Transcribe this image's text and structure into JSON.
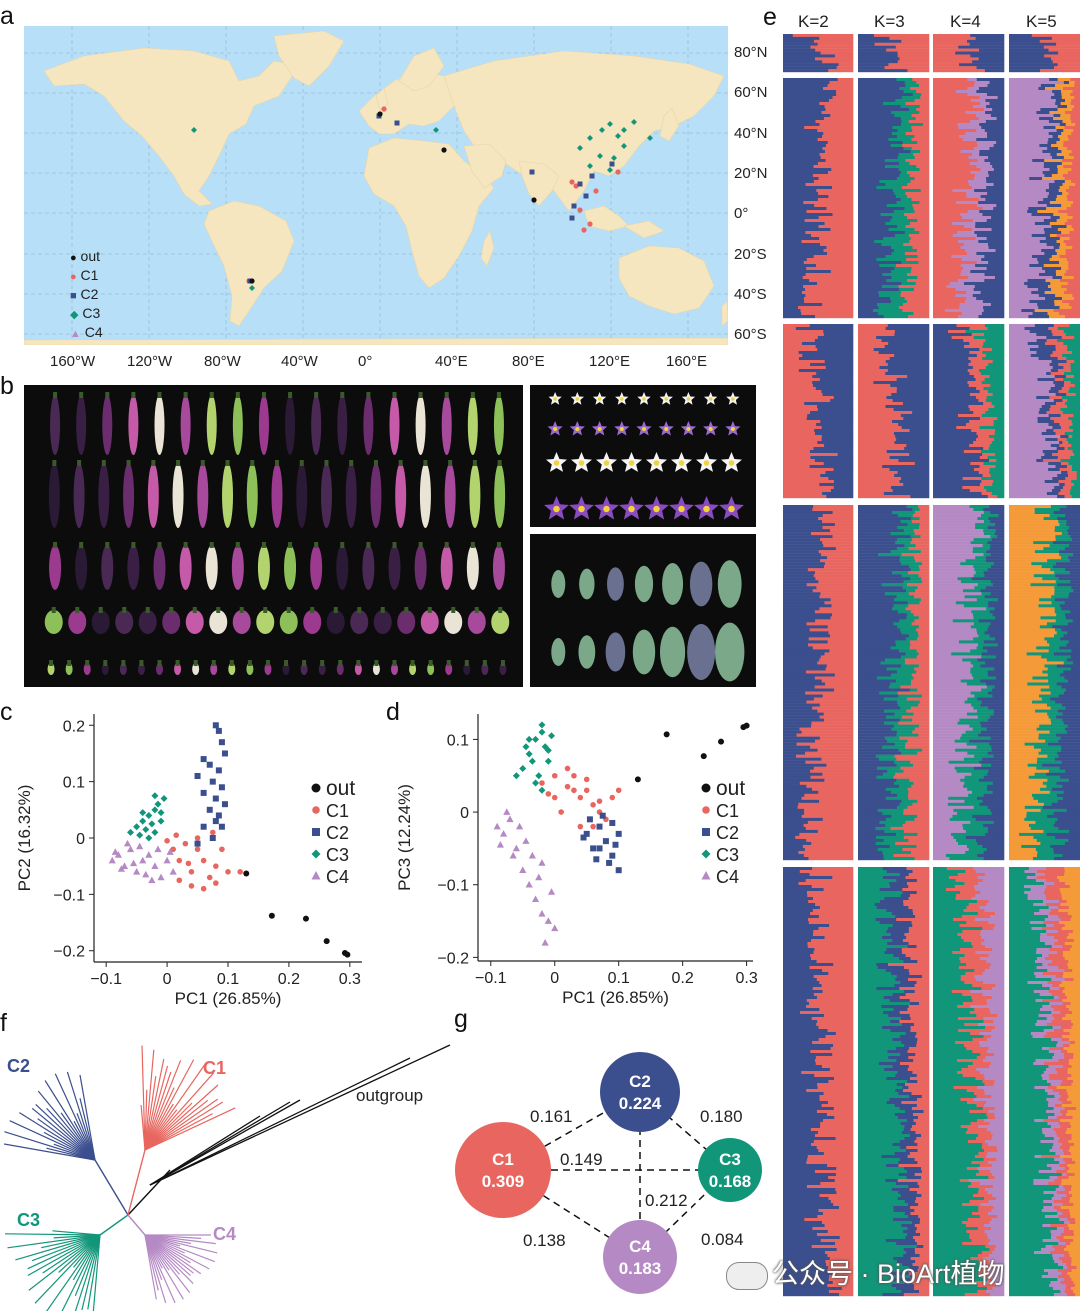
{
  "panel_labels": {
    "a": "a",
    "b": "b",
    "c": "c",
    "d": "d",
    "e": "e",
    "f": "f",
    "g": "g"
  },
  "colors": {
    "out": "#111111",
    "C1": "#e8665f",
    "C2": "#3b4f8e",
    "C3": "#12967a",
    "C4": "#b58ac4",
    "ocean": "#b7dff8",
    "land": "#f5e6c0",
    "K5_orange": "#f59a38"
  },
  "map": {
    "lat_labels": [
      "80°N",
      "60°N",
      "40°N",
      "20°N",
      "0°",
      "20°S",
      "40°S",
      "60°S"
    ],
    "lon_labels": [
      "160°W",
      "120°W",
      "80°W",
      "40°W",
      "0°",
      "40°E",
      "80°E",
      "120°E",
      "160°E"
    ],
    "legend": [
      {
        "label": "out",
        "group": "out",
        "symbol": "●"
      },
      {
        "label": "C1",
        "group": "C1",
        "symbol": "●"
      },
      {
        "label": "C2",
        "group": "C2",
        "symbol": "■"
      },
      {
        "label": "C3",
        "group": "C3",
        "symbol": "◆"
      },
      {
        "label": "C4",
        "group": "C4",
        "symbol": "▲"
      }
    ]
  },
  "chart_data": [
    {
      "panel": "c",
      "type": "scatter",
      "xlabel": "PC1 (26.85%)",
      "ylabel": "PC2 (16.32%)",
      "xlim": [
        -0.12,
        0.32
      ],
      "ylim": [
        -0.22,
        0.22
      ],
      "xticks": [
        {
          "v": -0.1,
          "t": "−0.1"
        },
        {
          "v": 0,
          "t": "0"
        },
        {
          "v": 0.1,
          "t": "0.1"
        },
        {
          "v": 0.2,
          "t": "0.2"
        },
        {
          "v": 0.3,
          "t": "0.3"
        }
      ],
      "yticks": [
        {
          "v": 0.2,
          "t": "0.2"
        },
        {
          "v": 0.1,
          "t": "0.1"
        },
        {
          "v": 0,
          "t": "0"
        },
        {
          "v": -0.1,
          "t": "−0.1"
        },
        {
          "v": -0.2,
          "t": "−0.2"
        }
      ],
      "legend": [
        "out",
        "C1",
        "C2",
        "C3",
        "C4"
      ],
      "series": [
        {
          "name": "out",
          "marker": "circle",
          "points": [
            [
              0.13,
              -0.063
            ],
            [
              0.172,
              -0.138
            ],
            [
              0.228,
              -0.143
            ],
            [
              0.262,
              -0.183
            ],
            [
              0.292,
              -0.204
            ],
            [
              0.296,
              -0.207
            ]
          ]
        },
        {
          "name": "C1",
          "marker": "circle",
          "points": [
            [
              0.0,
              -0.005
            ],
            [
              0.01,
              -0.02
            ],
            [
              0.02,
              -0.04
            ],
            [
              0.03,
              -0.01
            ],
            [
              0.04,
              -0.06
            ],
            [
              0.05,
              -0.02
            ],
            [
              0.06,
              -0.04
            ],
            [
              0.07,
              -0.07
            ],
            [
              0.08,
              -0.05
            ],
            [
              0.09,
              -0.02
            ],
            [
              0.1,
              -0.06
            ],
            [
              0.12,
              -0.06
            ],
            [
              0.02,
              -0.075
            ],
            [
              0.04,
              -0.085
            ],
            [
              0.06,
              -0.09
            ],
            [
              0.08,
              -0.08
            ],
            [
              0.015,
              0.005
            ],
            [
              0.05,
              0.0
            ],
            [
              0.075,
              0.01
            ],
            [
              0.035,
              -0.045
            ]
          ]
        },
        {
          "name": "C2",
          "marker": "square",
          "points": [
            [
              0.08,
              0.2
            ],
            [
              0.085,
              0.19
            ],
            [
              0.09,
              0.17
            ],
            [
              0.095,
              0.15
            ],
            [
              0.06,
              0.14
            ],
            [
              0.07,
              0.13
            ],
            [
              0.085,
              0.12
            ],
            [
              0.05,
              0.11
            ],
            [
              0.075,
              0.1
            ],
            [
              0.09,
              0.09
            ],
            [
              0.06,
              0.08
            ],
            [
              0.08,
              0.07
            ],
            [
              0.095,
              0.06
            ],
            [
              0.07,
              0.05
            ],
            [
              0.085,
              0.04
            ],
            [
              0.09,
              0.02
            ],
            [
              0.06,
              0.02
            ],
            [
              0.075,
              0.0
            ],
            [
              0.05,
              -0.01
            ],
            [
              0.08,
              0.03
            ]
          ]
        },
        {
          "name": "C3",
          "marker": "diamond",
          "points": [
            [
              -0.05,
              0.02
            ],
            [
              -0.04,
              0.03
            ],
            [
              -0.03,
              0.04
            ],
            [
              -0.02,
              0.05
            ],
            [
              -0.045,
              0.005
            ],
            [
              -0.035,
              0.015
            ],
            [
              -0.025,
              0.025
            ],
            [
              -0.015,
              0.06
            ],
            [
              -0.01,
              0.045
            ],
            [
              -0.005,
              0.07
            ],
            [
              -0.03,
              0.0
            ],
            [
              -0.02,
              0.01
            ],
            [
              -0.04,
              0.045
            ],
            [
              -0.02,
              0.075
            ],
            [
              -0.06,
              0.01
            ],
            [
              -0.01,
              0.03
            ]
          ]
        },
        {
          "name": "C4",
          "marker": "triangle",
          "points": [
            [
              -0.09,
              -0.04
            ],
            [
              -0.08,
              -0.03
            ],
            [
              -0.07,
              -0.05
            ],
            [
              -0.06,
              -0.02
            ],
            [
              -0.05,
              -0.06
            ],
            [
              -0.04,
              -0.04
            ],
            [
              -0.03,
              -0.03
            ],
            [
              -0.02,
              -0.05
            ],
            [
              -0.01,
              -0.07
            ],
            [
              0.0,
              -0.04
            ],
            [
              0.01,
              -0.06
            ],
            [
              -0.075,
              -0.055
            ],
            [
              -0.055,
              -0.045
            ],
            [
              -0.035,
              -0.065
            ],
            [
              -0.015,
              -0.02
            ],
            [
              -0.065,
              -0.01
            ],
            [
              -0.045,
              -0.015
            ],
            [
              -0.085,
              -0.025
            ],
            [
              0.005,
              -0.025
            ],
            [
              -0.025,
              -0.075
            ]
          ]
        }
      ]
    },
    {
      "panel": "d",
      "type": "scatter",
      "xlabel": "PC1 (26.85%)",
      "ylabel": "PC3 (12.24%)",
      "xlim": [
        -0.12,
        0.31
      ],
      "ylim": [
        -0.205,
        0.135
      ],
      "xticks": [
        {
          "v": -0.1,
          "t": "−0.1"
        },
        {
          "v": 0,
          "t": "0"
        },
        {
          "v": 0.1,
          "t": "0.1"
        },
        {
          "v": 0.2,
          "t": "0.2"
        },
        {
          "v": 0.3,
          "t": "0.3"
        }
      ],
      "yticks": [
        {
          "v": 0.1,
          "t": "0.1"
        },
        {
          "v": 0,
          "t": "0"
        },
        {
          "v": -0.1,
          "t": "−0.1"
        },
        {
          "v": -0.2,
          "t": "−0.2"
        }
      ],
      "legend": [
        "out",
        "C1",
        "C2",
        "C3",
        "C4"
      ],
      "series": [
        {
          "name": "out",
          "marker": "circle",
          "points": [
            [
              0.13,
              0.045
            ],
            [
              0.175,
              0.107
            ],
            [
              0.233,
              0.077
            ],
            [
              0.26,
              0.097
            ],
            [
              0.295,
              0.117
            ],
            [
              0.3,
              0.119
            ]
          ]
        },
        {
          "name": "C1",
          "marker": "circle",
          "points": [
            [
              -0.02,
              0.04
            ],
            [
              0.0,
              0.05
            ],
            [
              0.02,
              0.06
            ],
            [
              0.03,
              0.03
            ],
            [
              0.04,
              0.02
            ],
            [
              0.05,
              0.03
            ],
            [
              0.06,
              0.01
            ],
            [
              0.07,
              0.0
            ],
            [
              0.08,
              -0.01
            ],
            [
              0.1,
              0.03
            ],
            [
              0.01,
              0.0
            ],
            [
              0.04,
              -0.02
            ],
            [
              0.0,
              0.02
            ],
            [
              0.03,
              0.05
            ],
            [
              0.06,
              -0.02
            ],
            [
              0.09,
              0.02
            ],
            [
              0.02,
              0.035
            ],
            [
              0.05,
              0.045
            ],
            [
              0.07,
              0.015
            ],
            [
              -0.01,
              0.025
            ]
          ]
        },
        {
          "name": "C2",
          "marker": "square",
          "points": [
            [
              0.05,
              -0.03
            ],
            [
              0.06,
              -0.05
            ],
            [
              0.07,
              -0.02
            ],
            [
              0.08,
              -0.04
            ],
            [
              0.09,
              -0.06
            ],
            [
              0.1,
              -0.03
            ],
            [
              0.1,
              -0.08
            ],
            [
              0.085,
              -0.07
            ],
            [
              0.065,
              -0.065
            ],
            [
              0.055,
              -0.01
            ],
            [
              0.075,
              -0.005
            ],
            [
              0.095,
              -0.045
            ],
            [
              0.045,
              -0.035
            ],
            [
              0.07,
              -0.05
            ],
            [
              0.09,
              -0.015
            ]
          ]
        },
        {
          "name": "C3",
          "marker": "diamond",
          "points": [
            [
              -0.05,
              0.06
            ],
            [
              -0.04,
              0.08
            ],
            [
              -0.03,
              0.1
            ],
            [
              -0.02,
              0.11
            ],
            [
              -0.045,
              0.09
            ],
            [
              -0.035,
              0.07
            ],
            [
              -0.025,
              0.05
            ],
            [
              -0.015,
              0.09
            ],
            [
              -0.01,
              0.07
            ],
            [
              -0.005,
              0.105
            ],
            [
              -0.03,
              0.04
            ],
            [
              -0.02,
              0.03
            ],
            [
              -0.04,
              0.1
            ],
            [
              -0.02,
              0.12
            ],
            [
              -0.06,
              0.05
            ],
            [
              -0.01,
              0.085
            ]
          ]
        },
        {
          "name": "C4",
          "marker": "triangle",
          "points": [
            [
              -0.09,
              -0.02
            ],
            [
              -0.08,
              -0.03
            ],
            [
              -0.07,
              -0.01
            ],
            [
              -0.06,
              -0.05
            ],
            [
              -0.05,
              -0.08
            ],
            [
              -0.04,
              -0.1
            ],
            [
              -0.03,
              -0.12
            ],
            [
              -0.02,
              -0.14
            ],
            [
              -0.01,
              -0.15
            ],
            [
              0.0,
              -0.16
            ],
            [
              -0.015,
              -0.18
            ],
            [
              -0.075,
              0.0
            ],
            [
              -0.055,
              -0.02
            ],
            [
              -0.035,
              -0.06
            ],
            [
              -0.025,
              -0.09
            ],
            [
              -0.005,
              -0.11
            ],
            [
              -0.045,
              -0.04
            ],
            [
              -0.065,
              -0.06
            ],
            [
              -0.085,
              -0.045
            ],
            [
              -0.02,
              -0.07
            ]
          ]
        }
      ]
    },
    {
      "panel": "g",
      "type": "network",
      "nodes": [
        {
          "id": "C2",
          "label": "C2",
          "value": "0.224"
        },
        {
          "id": "C1",
          "label": "C1",
          "value": "0.309"
        },
        {
          "id": "C3",
          "label": "C3",
          "value": "0.168"
        },
        {
          "id": "C4",
          "label": "C4",
          "value": "0.183"
        }
      ],
      "edges": [
        {
          "from": "C1",
          "to": "C2",
          "label": "0.161"
        },
        {
          "from": "C2",
          "to": "C3",
          "label": "0.180"
        },
        {
          "from": "C1",
          "to": "C3",
          "label": "0.149"
        },
        {
          "from": "C2",
          "to": "C4",
          "label": "0.212"
        },
        {
          "from": "C1",
          "to": "C4",
          "label": "0.138"
        },
        {
          "from": "C3",
          "to": "C4",
          "label": "0.084"
        }
      ]
    }
  ],
  "structure": {
    "k_labels": [
      "K=2",
      "K=3",
      "K=4",
      "K=5"
    ]
  },
  "tree": {
    "labels": {
      "C2": "C2",
      "C1": "C1",
      "C3": "C3",
      "C4": "C4",
      "outgroup": "outgroup"
    }
  },
  "watermark": "公众号 · BioArt植物"
}
